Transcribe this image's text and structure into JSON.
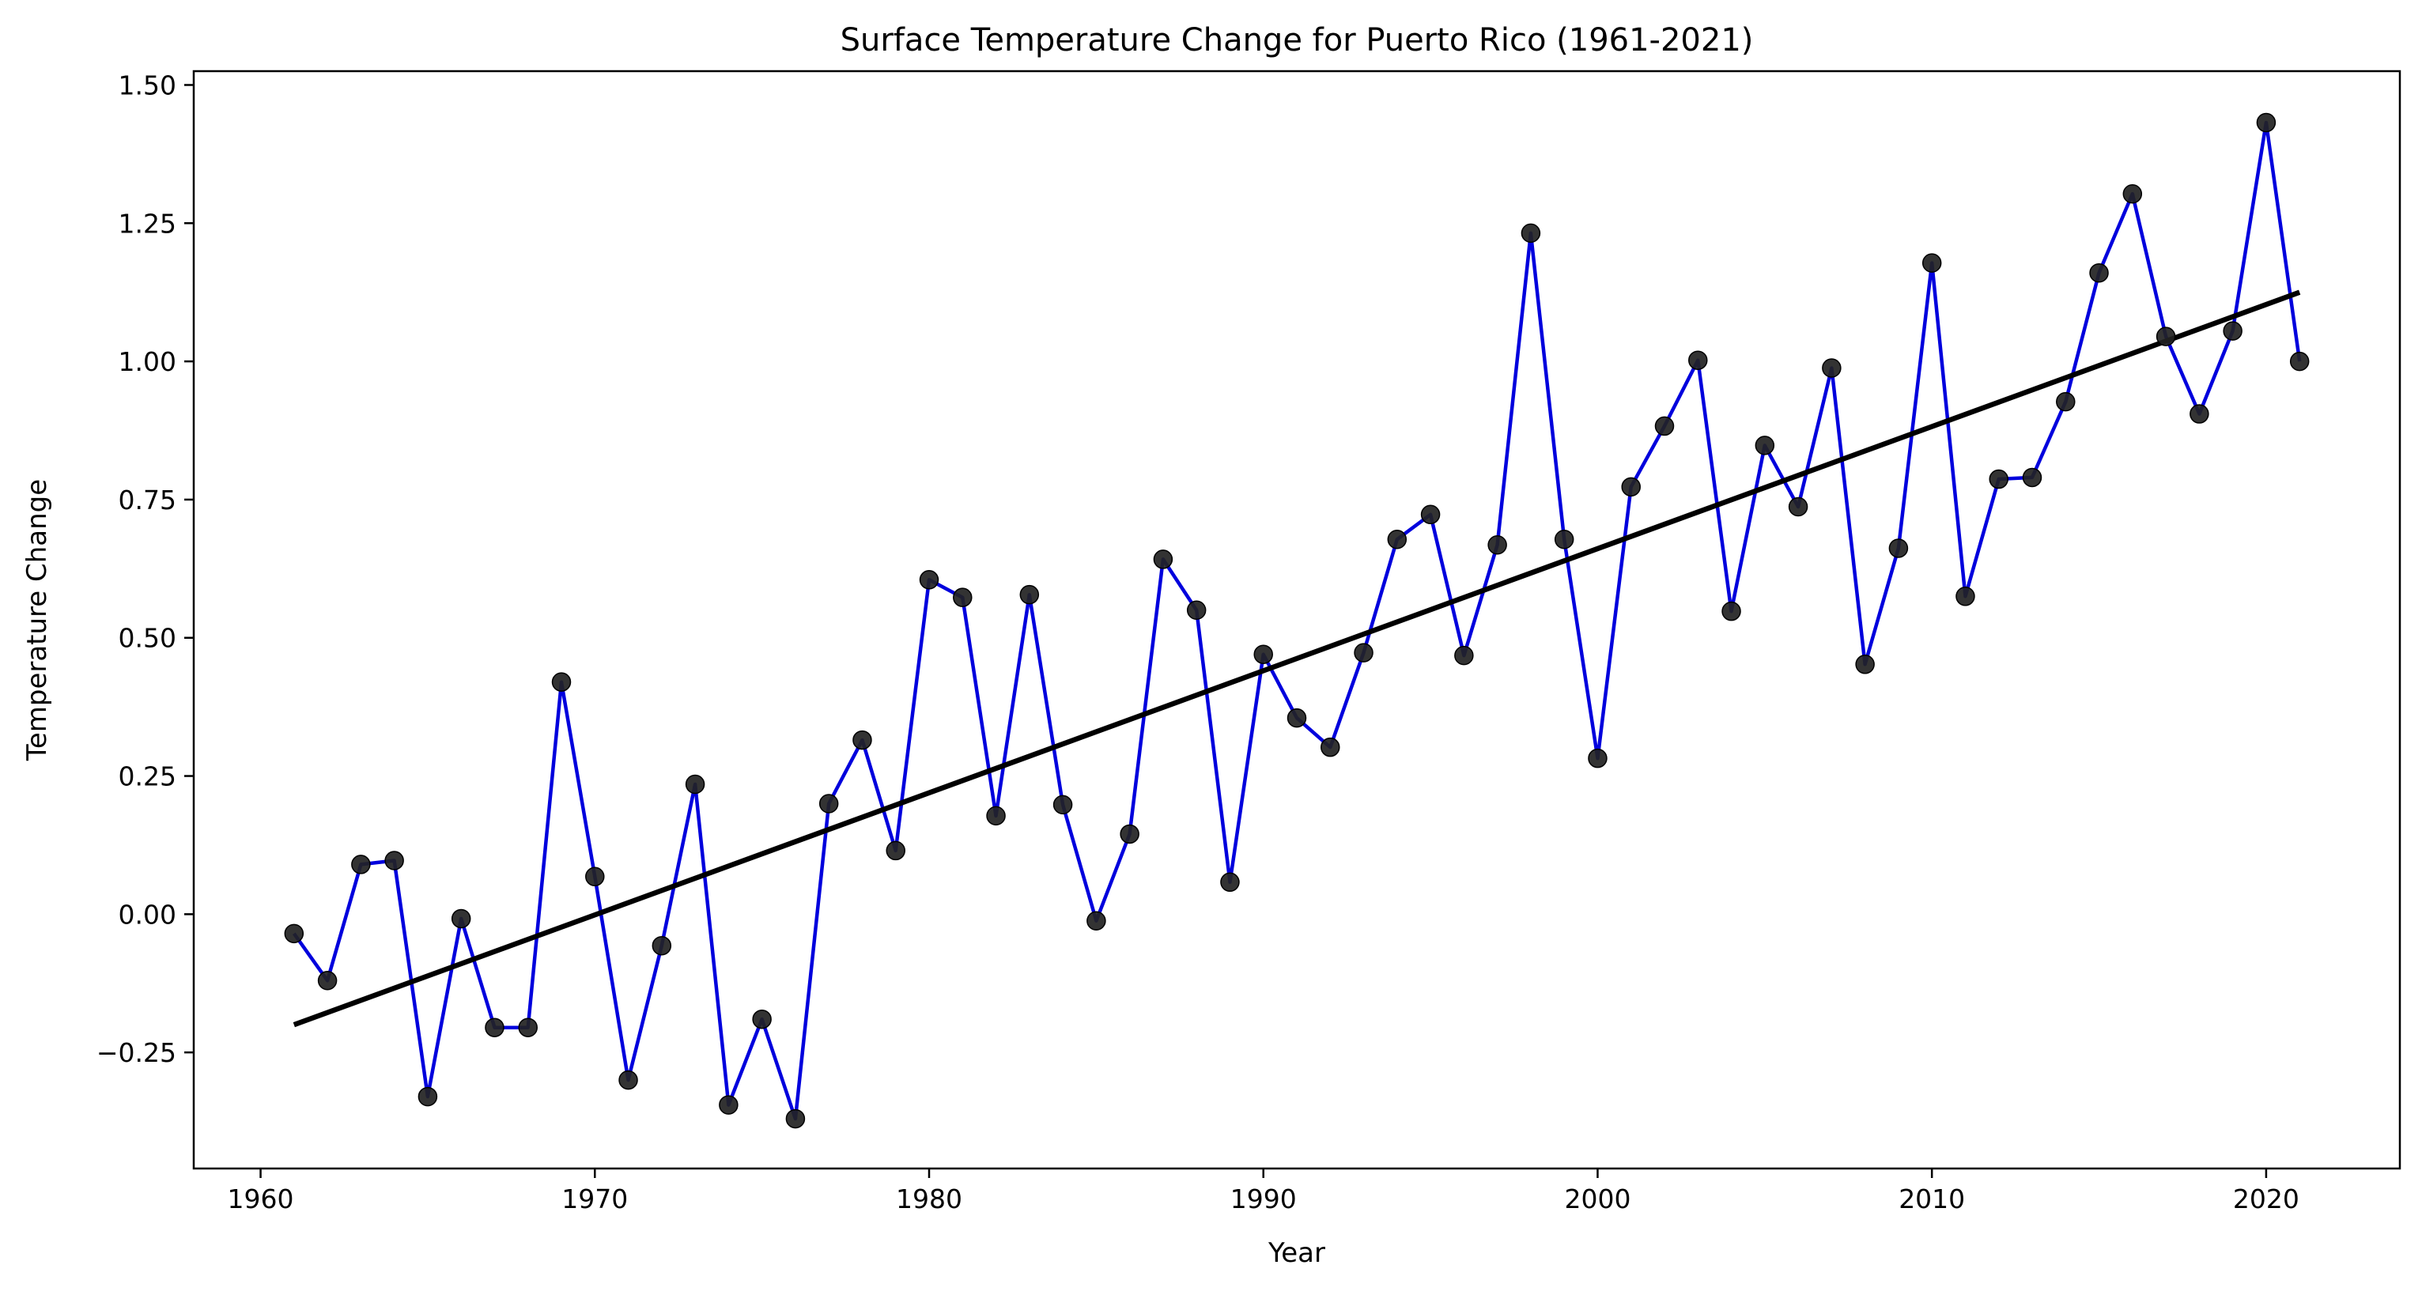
{
  "chart_data": {
    "type": "line",
    "title": "Surface Temperature Change for Puerto Rico (1961-2021)",
    "xlabel": "Year",
    "ylabel": "Temperature Change",
    "xlim": [
      1958.0,
      2024.0
    ],
    "ylim": [
      -0.46,
      1.525
    ],
    "xticks": [
      1960,
      1970,
      1980,
      1990,
      2000,
      2010,
      2020
    ],
    "xtick_labels": [
      "1960",
      "1970",
      "1980",
      "1990",
      "2000",
      "2010",
      "2020"
    ],
    "yticks": [
      -0.25,
      0.0,
      0.25,
      0.5,
      0.75,
      1.0,
      1.25,
      1.5
    ],
    "ytick_labels": [
      "−0.25",
      "0.00",
      "0.25",
      "0.50",
      "0.75",
      "1.00",
      "1.25",
      "1.50"
    ],
    "grid": false,
    "legend": "none",
    "series": [
      {
        "style": "line with markers",
        "line_color": "#0000dd",
        "marker_color": "#222222",
        "x": [
          1961,
          1962,
          1963,
          1964,
          1965,
          1966,
          1967,
          1968,
          1969,
          1970,
          1971,
          1972,
          1973,
          1974,
          1975,
          1976,
          1977,
          1978,
          1979,
          1980,
          1981,
          1982,
          1983,
          1984,
          1985,
          1986,
          1987,
          1988,
          1989,
          1990,
          1991,
          1992,
          1993,
          1994,
          1995,
          1996,
          1997,
          1998,
          1999,
          2000,
          2001,
          2002,
          2003,
          2004,
          2005,
          2006,
          2007,
          2008,
          2009,
          2010,
          2011,
          2012,
          2013,
          2014,
          2015,
          2016,
          2017,
          2018,
          2019,
          2020,
          2021
        ],
        "values": [
          -0.035,
          -0.12,
          0.09,
          0.097,
          -0.33,
          -0.008,
          -0.205,
          -0.205,
          0.42,
          0.068,
          -0.3,
          -0.057,
          0.235,
          -0.345,
          -0.19,
          -0.37,
          0.2,
          0.315,
          0.115,
          0.605,
          0.573,
          0.178,
          0.578,
          0.198,
          -0.012,
          0.145,
          0.642,
          0.55,
          0.058,
          0.47,
          0.355,
          0.302,
          0.473,
          0.678,
          0.723,
          0.468,
          0.668,
          1.232,
          0.678,
          0.282,
          0.773,
          0.883,
          1.002,
          0.548,
          0.848,
          0.737,
          0.988,
          0.452,
          0.662,
          1.178,
          0.575,
          0.787,
          0.79,
          0.927,
          1.16,
          1.303,
          1.045,
          0.905,
          1.055,
          1.432,
          1.0
        ]
      },
      {
        "style": "trend line",
        "line_color": "#000000",
        "x": [
          1961,
          2021
        ],
        "values": [
          -0.2,
          1.125
        ]
      }
    ]
  }
}
